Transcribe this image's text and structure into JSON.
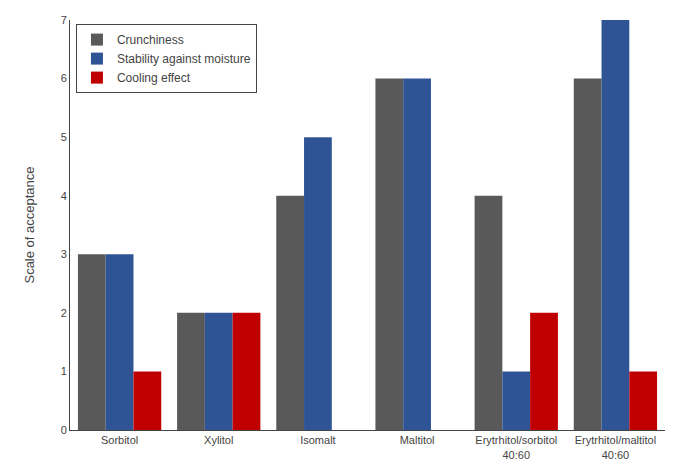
{
  "chart_data": {
    "type": "bar",
    "categories": [
      "Sorbitol",
      "Xylitol",
      "Isomalt",
      "Maltitol",
      "Erytrhitol/sorbitol\n40:60",
      "Erytrhitol/maltitol\n40:60"
    ],
    "series": [
      {
        "name": "Crunchiness",
        "color": "#595959",
        "values": [
          3,
          2,
          4,
          6,
          4,
          6
        ]
      },
      {
        "name": "Stability against moisture",
        "color": "#2f5496",
        "values": [
          3,
          2,
          5,
          6,
          1,
          7
        ]
      },
      {
        "name": "Cooling effect",
        "color": "#c00000",
        "values": [
          1,
          2,
          0,
          0,
          2,
          1
        ]
      }
    ],
    "ylabel": "Scale of acceptance",
    "ylim": [
      0,
      7
    ],
    "yticks": [
      0,
      1,
      2,
      3,
      4,
      5,
      6,
      7
    ],
    "grid": false,
    "legend": "upper left"
  }
}
